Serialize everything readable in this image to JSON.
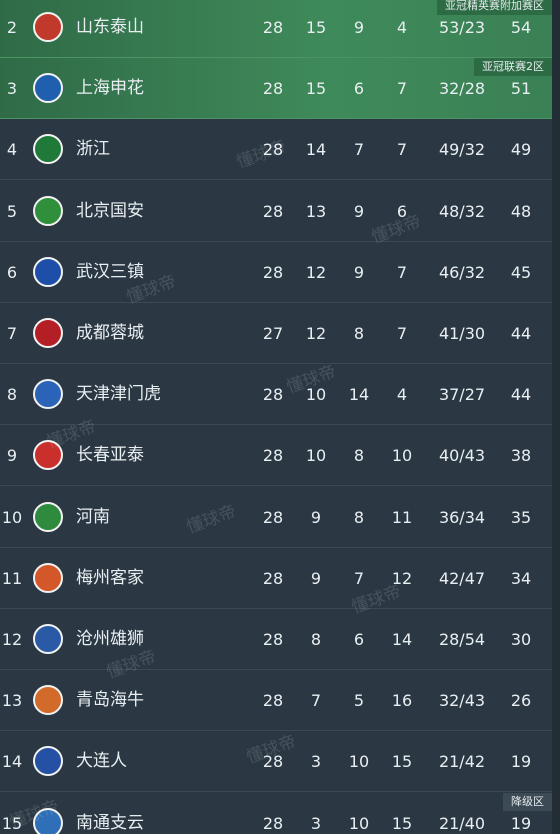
{
  "watermark": "懂球帝",
  "rows": [
    {
      "rank": "2",
      "team": "山东泰山",
      "played": "28",
      "won": "15",
      "drawn": "9",
      "lost": "4",
      "goals": "53/23",
      "points": "54",
      "zone": "亚冠精英赛附加赛区"
    },
    {
      "rank": "3",
      "team": "上海申花",
      "played": "28",
      "won": "15",
      "drawn": "6",
      "lost": "7",
      "goals": "32/28",
      "points": "51",
      "zone": "亚冠联赛2区"
    },
    {
      "rank": "4",
      "team": "浙江",
      "played": "28",
      "won": "14",
      "drawn": "7",
      "lost": "7",
      "goals": "49/32",
      "points": "49"
    },
    {
      "rank": "5",
      "team": "北京国安",
      "played": "28",
      "won": "13",
      "drawn": "9",
      "lost": "6",
      "goals": "48/32",
      "points": "48"
    },
    {
      "rank": "6",
      "team": "武汉三镇",
      "played": "28",
      "won": "12",
      "drawn": "9",
      "lost": "7",
      "goals": "46/32",
      "points": "45"
    },
    {
      "rank": "7",
      "team": "成都蓉城",
      "played": "27",
      "won": "12",
      "drawn": "8",
      "lost": "7",
      "goals": "41/30",
      "points": "44"
    },
    {
      "rank": "8",
      "team": "天津津门虎",
      "played": "28",
      "won": "10",
      "drawn": "14",
      "lost": "4",
      "goals": "37/27",
      "points": "44"
    },
    {
      "rank": "9",
      "team": "长春亚泰",
      "played": "28",
      "won": "10",
      "drawn": "8",
      "lost": "10",
      "goals": "40/43",
      "points": "38"
    },
    {
      "rank": "10",
      "team": "河南",
      "played": "28",
      "won": "9",
      "drawn": "8",
      "lost": "11",
      "goals": "36/34",
      "points": "35"
    },
    {
      "rank": "11",
      "team": "梅州客家",
      "played": "28",
      "won": "9",
      "drawn": "7",
      "lost": "12",
      "goals": "42/47",
      "points": "34"
    },
    {
      "rank": "12",
      "team": "沧州雄狮",
      "played": "28",
      "won": "8",
      "drawn": "6",
      "lost": "14",
      "goals": "28/54",
      "points": "30"
    },
    {
      "rank": "13",
      "team": "青岛海牛",
      "played": "28",
      "won": "7",
      "drawn": "5",
      "lost": "16",
      "goals": "32/43",
      "points": "26"
    },
    {
      "rank": "14",
      "team": "大连人",
      "played": "28",
      "won": "3",
      "drawn": "10",
      "lost": "15",
      "goals": "21/42",
      "points": "19"
    },
    {
      "rank": "15",
      "team": "南通支云",
      "played": "28",
      "won": "3",
      "drawn": "10",
      "lost": "15",
      "goals": "21/40",
      "points": "19",
      "zone": "降级区"
    }
  ]
}
